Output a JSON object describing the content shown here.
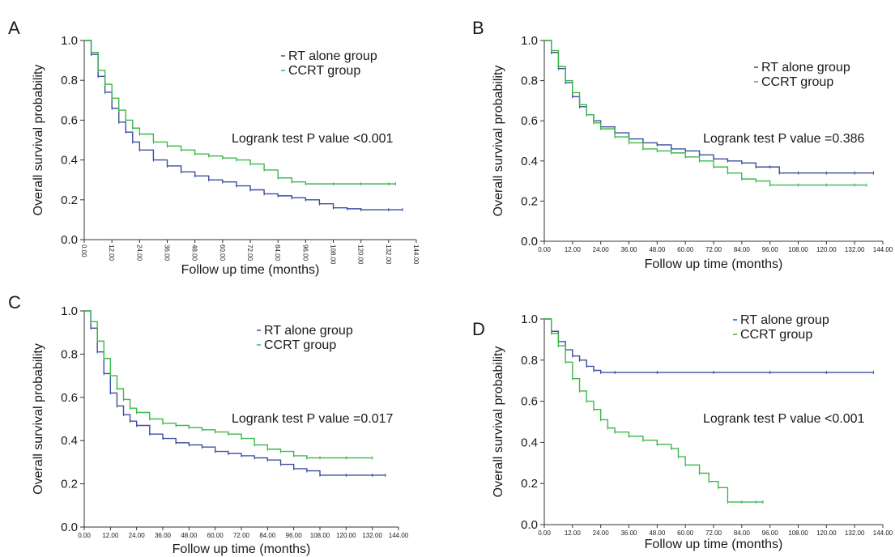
{
  "chart_data": [
    {
      "panel": "A",
      "type": "line",
      "ylabel": "Overall survival probability",
      "xlabel": "Follow up time (months)",
      "ylim": [
        0,
        1
      ],
      "xlim": [
        0,
        144
      ],
      "y_ticks": [
        "0.0",
        "0.2",
        "0.4",
        "0.6",
        "0.8",
        "1.0"
      ],
      "x_ticks": [
        "0.00",
        "12.00",
        "24.00",
        "36.00",
        "48.00",
        "60.00",
        "72.00",
        "84.00",
        "96.00",
        "108.00",
        "120.00",
        "132.00",
        "144.00"
      ],
      "x_tick_rotated": true,
      "legend_position": "top-right",
      "annotation": "Logrank test P value <0.001",
      "series": [
        {
          "name": "RT alone group",
          "color": "#3b4ea0",
          "points": [
            [
              0,
              1.0
            ],
            [
              3,
              0.93
            ],
            [
              6,
              0.82
            ],
            [
              9,
              0.74
            ],
            [
              12,
              0.66
            ],
            [
              15,
              0.59
            ],
            [
              18,
              0.54
            ],
            [
              21,
              0.49
            ],
            [
              24,
              0.45
            ],
            [
              30,
              0.4
            ],
            [
              36,
              0.37
            ],
            [
              42,
              0.34
            ],
            [
              48,
              0.32
            ],
            [
              54,
              0.3
            ],
            [
              60,
              0.29
            ],
            [
              66,
              0.27
            ],
            [
              72,
              0.25
            ],
            [
              78,
              0.23
            ],
            [
              84,
              0.22
            ],
            [
              90,
              0.21
            ],
            [
              96,
              0.2
            ],
            [
              102,
              0.18
            ],
            [
              108,
              0.16
            ],
            [
              114,
              0.155
            ],
            [
              120,
              0.15
            ],
            [
              132,
              0.15
            ],
            [
              138,
              0.15
            ]
          ]
        },
        {
          "name": "CCRT group",
          "color": "#3cb84a",
          "points": [
            [
              0,
              1.0
            ],
            [
              3,
              0.94
            ],
            [
              6,
              0.85
            ],
            [
              9,
              0.78
            ],
            [
              12,
              0.71
            ],
            [
              15,
              0.65
            ],
            [
              18,
              0.6
            ],
            [
              21,
              0.56
            ],
            [
              24,
              0.53
            ],
            [
              30,
              0.49
            ],
            [
              36,
              0.47
            ],
            [
              42,
              0.45
            ],
            [
              48,
              0.43
            ],
            [
              54,
              0.42
            ],
            [
              60,
              0.41
            ],
            [
              66,
              0.4
            ],
            [
              72,
              0.38
            ],
            [
              78,
              0.35
            ],
            [
              84,
              0.31
            ],
            [
              90,
              0.29
            ],
            [
              96,
              0.28
            ],
            [
              108,
              0.28
            ],
            [
              120,
              0.28
            ],
            [
              132,
              0.28
            ],
            [
              135,
              0.28
            ]
          ]
        }
      ]
    },
    {
      "panel": "B",
      "type": "line",
      "ylabel": "Overall survival probability",
      "xlabel": "Follow up time (months)",
      "ylim": [
        0,
        1
      ],
      "xlim": [
        0,
        144
      ],
      "y_ticks": [
        "0.0",
        "0.2",
        "0.4",
        "0.6",
        "0.8",
        "1.0"
      ],
      "x_ticks": [
        "0.00",
        "12.00",
        "24.00",
        "36.00",
        "48.00",
        "60.00",
        "72.00",
        "84.00",
        "96.00",
        "108.00",
        "120.00",
        "132.00",
        "144.00"
      ],
      "x_tick_rotated": false,
      "legend_position": "top-right",
      "annotation": "Logrank test P value =0.386",
      "series": [
        {
          "name": "RT alone group",
          "color": "#3b4ea0",
          "points": [
            [
              0,
              1.0
            ],
            [
              3,
              0.94
            ],
            [
              6,
              0.86
            ],
            [
              9,
              0.79
            ],
            [
              12,
              0.72
            ],
            [
              15,
              0.67
            ],
            [
              18,
              0.63
            ],
            [
              21,
              0.6
            ],
            [
              24,
              0.57
            ],
            [
              30,
              0.54
            ],
            [
              36,
              0.51
            ],
            [
              42,
              0.49
            ],
            [
              48,
              0.48
            ],
            [
              54,
              0.46
            ],
            [
              60,
              0.45
            ],
            [
              66,
              0.43
            ],
            [
              72,
              0.41
            ],
            [
              78,
              0.4
            ],
            [
              84,
              0.39
            ],
            [
              90,
              0.37
            ],
            [
              96,
              0.37
            ],
            [
              100,
              0.34
            ],
            [
              108,
              0.34
            ],
            [
              120,
              0.34
            ],
            [
              132,
              0.34
            ],
            [
              140,
              0.34
            ]
          ]
        },
        {
          "name": "CCRT group",
          "color": "#3cb84a",
          "points": [
            [
              0,
              1.0
            ],
            [
              3,
              0.95
            ],
            [
              6,
              0.87
            ],
            [
              9,
              0.8
            ],
            [
              12,
              0.74
            ],
            [
              15,
              0.68
            ],
            [
              18,
              0.63
            ],
            [
              21,
              0.59
            ],
            [
              24,
              0.56
            ],
            [
              30,
              0.52
            ],
            [
              36,
              0.49
            ],
            [
              42,
              0.46
            ],
            [
              48,
              0.45
            ],
            [
              54,
              0.44
            ],
            [
              60,
              0.42
            ],
            [
              66,
              0.4
            ],
            [
              72,
              0.37
            ],
            [
              78,
              0.34
            ],
            [
              84,
              0.31
            ],
            [
              90,
              0.3
            ],
            [
              96,
              0.28
            ],
            [
              108,
              0.28
            ],
            [
              120,
              0.28
            ],
            [
              132,
              0.28
            ],
            [
              137,
              0.28
            ]
          ]
        }
      ]
    },
    {
      "panel": "C",
      "type": "line",
      "ylabel": "Overall survival probability",
      "xlabel": "Follow up time (months)",
      "ylim": [
        0,
        1
      ],
      "xlim": [
        0,
        144
      ],
      "y_ticks": [
        "0.0",
        "0.2",
        "0.4",
        "0.6",
        "0.8",
        "1.0"
      ],
      "x_ticks": [
        "0.00",
        "12.00",
        "24.00",
        "36.00",
        "48.00",
        "60.00",
        "72.00",
        "84.00",
        "96.00",
        "108.00",
        "120.00",
        "132.00",
        "144.00"
      ],
      "x_tick_rotated": false,
      "legend_position": "top-right",
      "annotation": "Logrank test P value =0.017",
      "series": [
        {
          "name": "RT alone group",
          "color": "#3b4ea0",
          "points": [
            [
              0,
              1.0
            ],
            [
              3,
              0.92
            ],
            [
              6,
              0.81
            ],
            [
              9,
              0.71
            ],
            [
              12,
              0.62
            ],
            [
              15,
              0.56
            ],
            [
              18,
              0.52
            ],
            [
              21,
              0.49
            ],
            [
              24,
              0.47
            ],
            [
              30,
              0.43
            ],
            [
              36,
              0.41
            ],
            [
              42,
              0.39
            ],
            [
              48,
              0.38
            ],
            [
              54,
              0.37
            ],
            [
              60,
              0.35
            ],
            [
              66,
              0.34
            ],
            [
              72,
              0.33
            ],
            [
              78,
              0.32
            ],
            [
              84,
              0.31
            ],
            [
              90,
              0.29
            ],
            [
              96,
              0.27
            ],
            [
              102,
              0.26
            ],
            [
              108,
              0.24
            ],
            [
              120,
              0.24
            ],
            [
              132,
              0.24
            ],
            [
              138,
              0.24
            ]
          ]
        },
        {
          "name": "CCRT group",
          "color": "#3cb84a",
          "points": [
            [
              0,
              1.0
            ],
            [
              3,
              0.95
            ],
            [
              6,
              0.86
            ],
            [
              9,
              0.78
            ],
            [
              12,
              0.7
            ],
            [
              15,
              0.64
            ],
            [
              18,
              0.59
            ],
            [
              21,
              0.55
            ],
            [
              24,
              0.53
            ],
            [
              30,
              0.5
            ],
            [
              36,
              0.48
            ],
            [
              42,
              0.47
            ],
            [
              48,
              0.46
            ],
            [
              54,
              0.45
            ],
            [
              60,
              0.44
            ],
            [
              66,
              0.43
            ],
            [
              72,
              0.41
            ],
            [
              78,
              0.38
            ],
            [
              84,
              0.36
            ],
            [
              90,
              0.35
            ],
            [
              96,
              0.33
            ],
            [
              102,
              0.32
            ],
            [
              108,
              0.32
            ],
            [
              120,
              0.32
            ],
            [
              132,
              0.32
            ]
          ]
        }
      ]
    },
    {
      "panel": "D",
      "type": "line",
      "ylabel": "Overall survival probability",
      "xlabel": "Follow up time (months)",
      "ylim": [
        0,
        1
      ],
      "xlim": [
        0,
        144
      ],
      "y_ticks": [
        "0.0",
        "0.2",
        "0.4",
        "0.6",
        "0.8",
        "1.0"
      ],
      "x_ticks": [
        "0.00",
        "12.00",
        "24.00",
        "36.00",
        "48.00",
        "60.00",
        "72.00",
        "84.00",
        "96.00",
        "108.00",
        "120.00",
        "132.00",
        "144.00"
      ],
      "x_tick_rotated": false,
      "legend_position": "top-right",
      "annotation": "Logrank test P value <0.001",
      "series": [
        {
          "name": "RT alone group",
          "color": "#3b4ea0",
          "points": [
            [
              0,
              1.0
            ],
            [
              3,
              0.94
            ],
            [
              6,
              0.89
            ],
            [
              9,
              0.85
            ],
            [
              12,
              0.82
            ],
            [
              15,
              0.8
            ],
            [
              18,
              0.77
            ],
            [
              21,
              0.75
            ],
            [
              24,
              0.74
            ],
            [
              30,
              0.74
            ],
            [
              48,
              0.74
            ],
            [
              72,
              0.74
            ],
            [
              96,
              0.74
            ],
            [
              120,
              0.74
            ],
            [
              140,
              0.74
            ]
          ]
        },
        {
          "name": "CCRT group",
          "color": "#3cb84a",
          "points": [
            [
              0,
              1.0
            ],
            [
              3,
              0.93
            ],
            [
              6,
              0.87
            ],
            [
              9,
              0.79
            ],
            [
              12,
              0.71
            ],
            [
              15,
              0.65
            ],
            [
              18,
              0.6
            ],
            [
              21,
              0.56
            ],
            [
              24,
              0.51
            ],
            [
              27,
              0.47
            ],
            [
              30,
              0.45
            ],
            [
              36,
              0.43
            ],
            [
              42,
              0.41
            ],
            [
              48,
              0.39
            ],
            [
              54,
              0.37
            ],
            [
              57,
              0.33
            ],
            [
              60,
              0.29
            ],
            [
              66,
              0.25
            ],
            [
              70,
              0.21
            ],
            [
              74,
              0.18
            ],
            [
              78,
              0.11
            ],
            [
              84,
              0.11
            ],
            [
              90,
              0.11
            ],
            [
              93,
              0.11
            ]
          ]
        }
      ]
    }
  ]
}
